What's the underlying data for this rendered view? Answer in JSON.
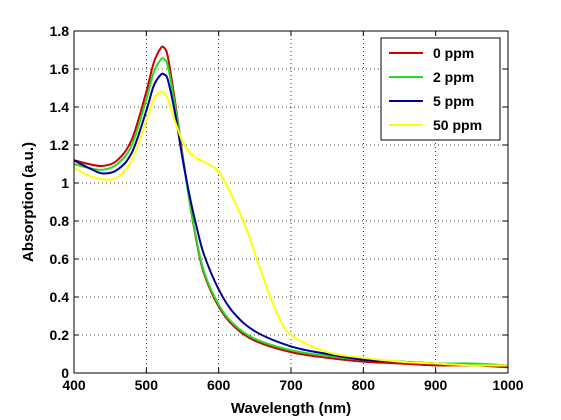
{
  "chart_data": {
    "type": "line",
    "title": "",
    "xlabel": "Wavelength (nm)",
    "ylabel": "Absorption (a.u.)",
    "xlim": [
      400,
      1000
    ],
    "ylim": [
      0,
      1.8
    ],
    "xticks": [
      400,
      500,
      600,
      700,
      800,
      900,
      1000
    ],
    "yticks": [
      0,
      0.2,
      0.4,
      0.6,
      0.8,
      1,
      1.2,
      1.4,
      1.6,
      1.8
    ],
    "xtick_labels": [
      "400",
      "500",
      "600",
      "700",
      "800",
      "900",
      "1000"
    ],
    "ytick_labels": [
      "0",
      "0.2",
      "0.4",
      "0.6",
      "0.8",
      "1",
      "1.2",
      "1.4",
      "1.6",
      "1.8"
    ],
    "grid": true,
    "legend_position": "top-right",
    "series": [
      {
        "name": "0 ppm",
        "color": "#cc0000",
        "x": [
          400,
          420,
          440,
          460,
          480,
          500,
          510,
          520,
          525,
          530,
          540,
          550,
          560,
          570,
          580,
          600,
          620,
          650,
          700,
          750,
          800,
          850,
          900,
          950,
          1000
        ],
        "y": [
          1.12,
          1.1,
          1.09,
          1.12,
          1.23,
          1.48,
          1.63,
          1.71,
          1.71,
          1.66,
          1.42,
          1.15,
          0.9,
          0.68,
          0.52,
          0.35,
          0.25,
          0.17,
          0.11,
          0.08,
          0.06,
          0.05,
          0.04,
          0.04,
          0.03
        ]
      },
      {
        "name": "2 ppm",
        "color": "#22dd22",
        "x": [
          400,
          420,
          440,
          460,
          480,
          500,
          510,
          520,
          525,
          530,
          540,
          550,
          560,
          570,
          580,
          600,
          620,
          650,
          700,
          750,
          800,
          850,
          900,
          950,
          1000
        ],
        "y": [
          1.1,
          1.08,
          1.07,
          1.1,
          1.2,
          1.44,
          1.58,
          1.65,
          1.65,
          1.61,
          1.4,
          1.14,
          0.9,
          0.69,
          0.53,
          0.36,
          0.26,
          0.18,
          0.12,
          0.09,
          0.07,
          0.06,
          0.05,
          0.05,
          0.04
        ]
      },
      {
        "name": "5 ppm",
        "color": "#000099",
        "x": [
          400,
          420,
          440,
          460,
          480,
          500,
          510,
          520,
          525,
          530,
          540,
          550,
          560,
          570,
          580,
          600,
          620,
          650,
          700,
          750,
          800,
          850,
          900,
          950,
          1000
        ],
        "y": [
          1.12,
          1.08,
          1.05,
          1.07,
          1.16,
          1.38,
          1.51,
          1.57,
          1.57,
          1.54,
          1.36,
          1.13,
          0.93,
          0.76,
          0.62,
          0.44,
          0.32,
          0.22,
          0.14,
          0.1,
          0.07,
          0.06,
          0.05,
          0.04,
          0.04
        ]
      },
      {
        "name": "50 ppm",
        "color": "#ffff00",
        "x": [
          400,
          420,
          440,
          460,
          480,
          500,
          510,
          520,
          525,
          530,
          540,
          550,
          560,
          570,
          580,
          600,
          620,
          640,
          660,
          680,
          700,
          750,
          800,
          850,
          900,
          950,
          1000
        ],
        "y": [
          1.08,
          1.04,
          1.02,
          1.03,
          1.12,
          1.33,
          1.44,
          1.48,
          1.47,
          1.44,
          1.32,
          1.22,
          1.16,
          1.13,
          1.11,
          1.06,
          0.92,
          0.74,
          0.52,
          0.32,
          0.2,
          0.11,
          0.08,
          0.06,
          0.05,
          0.04,
          0.04
        ]
      }
    ]
  }
}
